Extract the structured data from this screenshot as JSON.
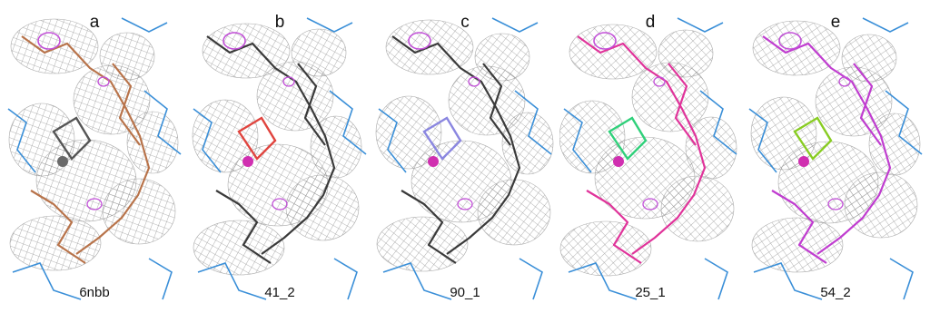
{
  "panels": [
    {
      "letter": "a",
      "caption": "6nbb",
      "model_color": "#b8734a",
      "accent": "#555555"
    },
    {
      "letter": "b",
      "caption": "41_2",
      "model_color": "#3a3a3a",
      "accent": "#e0443e"
    },
    {
      "letter": "c",
      "caption": "90_1",
      "model_color": "#3a3a3a",
      "accent": "#8a86e0"
    },
    {
      "letter": "d",
      "caption": "25_1",
      "model_color": "#e0339a",
      "accent": "#2fd07a"
    },
    {
      "letter": "e",
      "caption": "54_2",
      "model_color": "#c03cd0",
      "accent": "#88cc22"
    }
  ],
  "colors": {
    "density_mesh": "#8a8a8a",
    "neighbor_model": "#3a8fd8",
    "difference_density": "#c24fd8"
  }
}
